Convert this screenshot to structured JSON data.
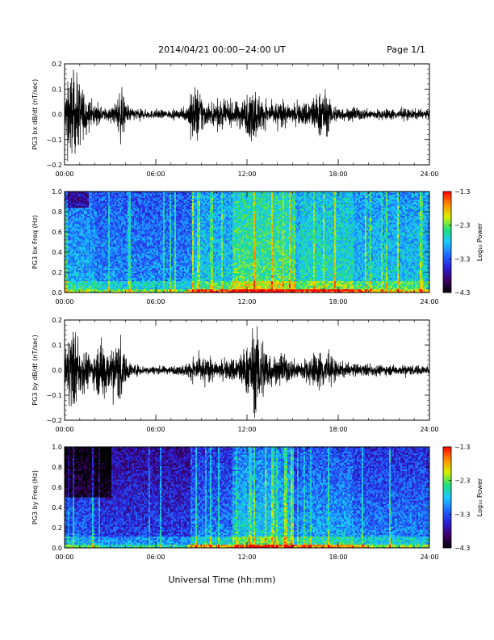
{
  "header": {
    "title": "2014/04/21  00:00−24:00 UT",
    "page": "Page 1/1"
  },
  "xaxis_title": "Universal Time (hh:mm)",
  "colorbar_label": "Log₁₀ Power",
  "colormap": [
    "#000000",
    "#3b0066",
    "#2a1fd6",
    "#1f6cff",
    "#19c8ff",
    "#22e07a",
    "#d8f000",
    "#ff8a00",
    "#ff0000"
  ],
  "chart_data": [
    {
      "type": "line",
      "id": "ts1",
      "ylabel": "PG3 bx dB/dt (nT/sec)",
      "xticks": [
        "00:00",
        "06:00",
        "12:00",
        "18:00",
        "24:00"
      ],
      "xlim_hours": [
        0,
        24
      ],
      "yticks": [
        "0.2",
        "0.1",
        "0.0",
        "−0.1",
        "−0.2"
      ],
      "ylim": [
        -0.2,
        0.2
      ],
      "grid": false,
      "envelope": {
        "hours": [
          0,
          0.3,
          0.6,
          1.0,
          1.4,
          1.8,
          2.5,
          3.0,
          3.4,
          3.7,
          4.0,
          4.5,
          5.5,
          6.5,
          7.5,
          8.0,
          8.4,
          8.8,
          9.2,
          9.5,
          10.0,
          10.5,
          11.0,
          11.5,
          12.0,
          12.5,
          13.0,
          13.5,
          14.0,
          14.5,
          15.0,
          15.5,
          16.0,
          16.3,
          16.7,
          17.0,
          17.3,
          17.6,
          18.0,
          18.5,
          19.0,
          20.0,
          21.0,
          22.0,
          23.0,
          24.0
        ],
        "amplitude": [
          0.08,
          0.2,
          0.2,
          0.16,
          0.1,
          0.05,
          0.03,
          0.03,
          0.06,
          0.14,
          0.05,
          0.03,
          0.02,
          0.02,
          0.02,
          0.03,
          0.12,
          0.14,
          0.07,
          0.04,
          0.07,
          0.06,
          0.05,
          0.07,
          0.09,
          0.13,
          0.07,
          0.05,
          0.06,
          0.05,
          0.04,
          0.05,
          0.07,
          0.09,
          0.1,
          0.14,
          0.09,
          0.05,
          0.04,
          0.03,
          0.03,
          0.025,
          0.025,
          0.025,
          0.025,
          0.02
        ]
      }
    },
    {
      "type": "heatmap",
      "id": "spec1",
      "ylabel": "PG3 bx Freq (Hz)",
      "xticks": [
        "00:00",
        "06:00",
        "12:00",
        "18:00",
        "24:00"
      ],
      "xlim_hours": [
        0,
        24
      ],
      "yticks": [
        "1.0",
        "0.8",
        "0.6",
        "0.4",
        "0.2",
        "0.0"
      ],
      "ylim": [
        0,
        1.0
      ],
      "colorbar": {
        "label": "Log₁₀ Power",
        "ticks": [
          "−1.3",
          "−2.3",
          "−3.3",
          "−4.3"
        ],
        "range": [
          -4.3,
          -1.3
        ]
      }
    },
    {
      "type": "line",
      "id": "ts2",
      "ylabel": "PG3 by dB/dt (nT/sec)",
      "xticks": [
        "00:00",
        "06:00",
        "12:00",
        "18:00",
        "24:00"
      ],
      "xlim_hours": [
        0,
        24
      ],
      "yticks": [
        "0.2",
        "0.1",
        "0.0",
        "−0.1",
        "−0.2"
      ],
      "ylim": [
        -0.2,
        0.2
      ],
      "grid": false,
      "envelope": {
        "hours": [
          0,
          0.3,
          0.6,
          1.0,
          1.4,
          1.8,
          2.2,
          2.6,
          3.0,
          3.4,
          3.7,
          4.0,
          4.5,
          5.5,
          6.5,
          7.5,
          8.2,
          8.8,
          9.3,
          9.8,
          10.5,
          11.0,
          11.5,
          12.0,
          12.4,
          12.8,
          13.2,
          13.6,
          14.0,
          14.5,
          15.0,
          15.5,
          16.0,
          16.5,
          17.0,
          17.5,
          18.0,
          19.0,
          20.0,
          21.0,
          22.0,
          23.0,
          24.0
        ],
        "amplitude": [
          0.07,
          0.2,
          0.2,
          0.12,
          0.1,
          0.06,
          0.12,
          0.18,
          0.08,
          0.14,
          0.18,
          0.06,
          0.03,
          0.02,
          0.02,
          0.02,
          0.04,
          0.07,
          0.06,
          0.04,
          0.04,
          0.06,
          0.08,
          0.12,
          0.2,
          0.2,
          0.14,
          0.08,
          0.06,
          0.07,
          0.05,
          0.05,
          0.06,
          0.08,
          0.1,
          0.06,
          0.04,
          0.03,
          0.03,
          0.025,
          0.025,
          0.025,
          0.02
        ]
      }
    },
    {
      "type": "heatmap",
      "id": "spec2",
      "ylabel": "PG3 by Freq (Hz)",
      "xticks": [
        "00:00",
        "06:00",
        "12:00",
        "18:00",
        "24:00"
      ],
      "xlim_hours": [
        0,
        24
      ],
      "yticks": [
        "1.0",
        "0.8",
        "0.6",
        "0.4",
        "0.2",
        "0.0"
      ],
      "ylim": [
        0,
        1.0
      ],
      "colorbar": {
        "label": "Log₁₀ Power",
        "ticks": [
          "−1.3",
          "−2.3",
          "−3.3",
          "−4.3"
        ],
        "range": [
          -4.3,
          -1.3
        ]
      }
    }
  ]
}
